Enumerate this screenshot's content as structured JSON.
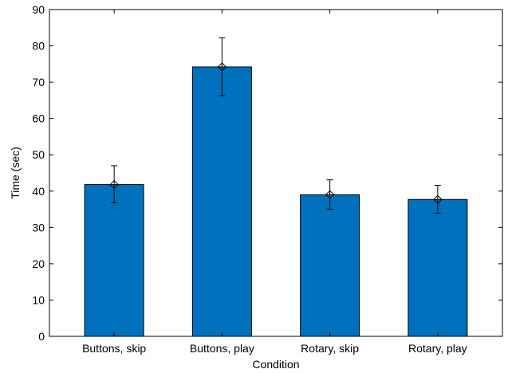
{
  "chart_data": {
    "type": "bar",
    "categories": [
      "Buttons, skip",
      "Buttons, play",
      "Rotary, skip",
      "Rotary, play"
    ],
    "values": [
      41.8,
      74.2,
      39.0,
      37.7
    ],
    "error_upper": [
      47.0,
      82.2,
      43.1,
      41.6
    ],
    "error_lower": [
      36.8,
      66.3,
      35.0,
      33.9
    ],
    "marker_values": [
      41.8,
      74.2,
      39.0,
      37.7
    ],
    "xlabel": "Condition",
    "ylabel": "Time (sec)",
    "ylim": [
      0,
      90
    ],
    "yticks": [
      0,
      10,
      20,
      30,
      40,
      50,
      60,
      70,
      80,
      90
    ],
    "grid": false,
    "bar_color": "#0072bd",
    "edge_color": "#000000",
    "marker": "diamond"
  }
}
